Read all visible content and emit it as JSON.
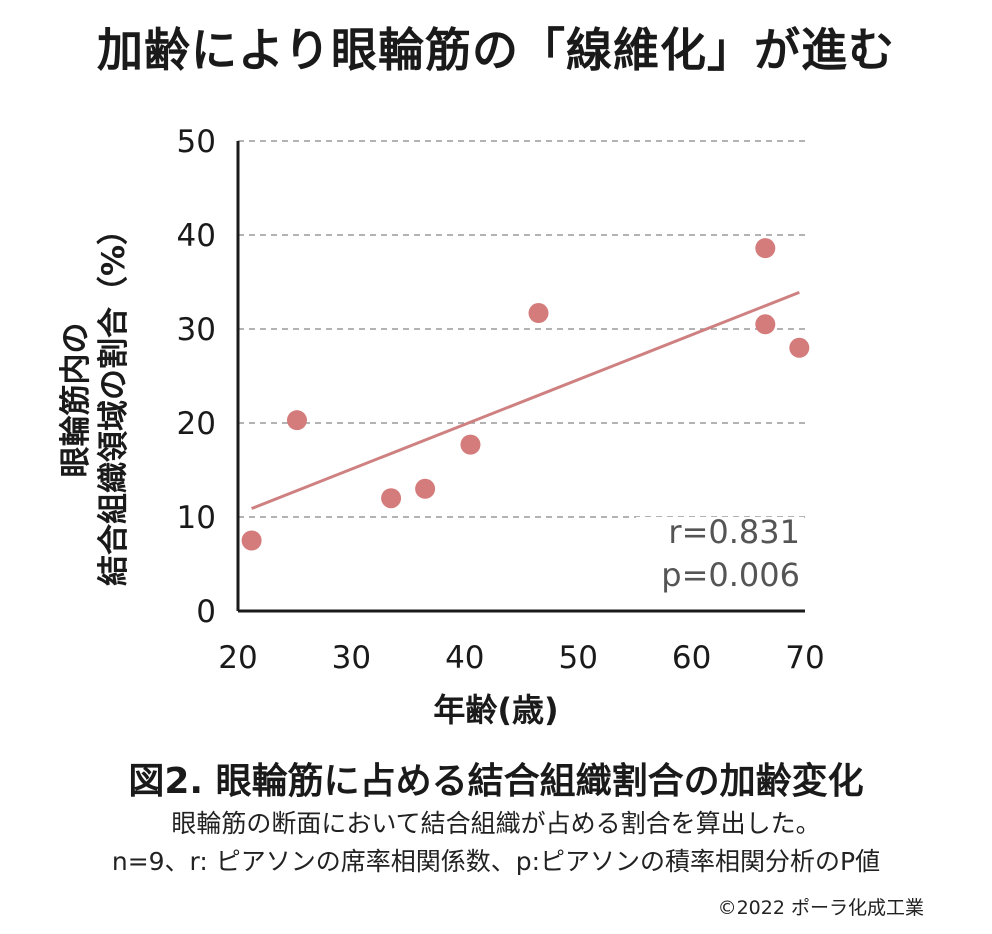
{
  "header": {
    "title": "加齢により眼輪筋の「線維化」が進む"
  },
  "chart_data": {
    "type": "scatter",
    "xlabel": "年齢(歳)",
    "ylabel_lines": [
      "眼輪筋内の",
      "結合組織領域の割合（%）"
    ],
    "xlim": [
      20,
      70
    ],
    "ylim": [
      0,
      50
    ],
    "xticks": [
      "20",
      "30",
      "40",
      "50",
      "60",
      "70"
    ],
    "yticks": [
      "0",
      "10",
      "20",
      "30",
      "40",
      "50"
    ],
    "grid": "horizontal-dashed",
    "points": [
      {
        "x": 21.2,
        "y": 7.5
      },
      {
        "x": 25.2,
        "y": 20.3
      },
      {
        "x": 33.5,
        "y": 12.0
      },
      {
        "x": 36.5,
        "y": 13.0
      },
      {
        "x": 40.5,
        "y": 17.7
      },
      {
        "x": 46.5,
        "y": 31.7
      },
      {
        "x": 66.5,
        "y": 38.6
      },
      {
        "x": 66.5,
        "y": 30.5
      },
      {
        "x": 69.5,
        "y": 28.0
      }
    ],
    "trendline": {
      "x": [
        21.2,
        69.5
      ],
      "y": [
        10.9,
        33.9
      ]
    },
    "annotations": [
      "r=0.831",
      "p=0.006"
    ],
    "colors": {
      "point": "#d47b7b",
      "trend": "#cf8080",
      "grid": "#9a9a9a",
      "axis": "#1a1a1a"
    }
  },
  "figure": {
    "title": "図2. 眼輪筋に占める結合組織割合の加齢変化",
    "caption_line1": "眼輪筋の断面において結合組織が占める割合を算出した。",
    "caption_line2": "n=9、r: ピアソンの席率相関係数、p:ピアソンの積率相関分析のP値",
    "copyright": "©2022 ポーラ化成工業"
  }
}
